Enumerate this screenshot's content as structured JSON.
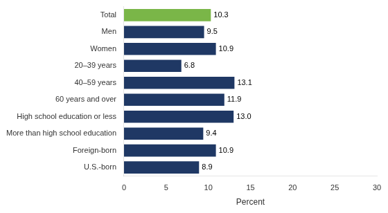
{
  "chart_data": {
    "type": "bar",
    "orientation": "horizontal",
    "categories": [
      "U.S.-born",
      "Foreign-born",
      "More than high school education",
      "High school education or less",
      "60 years and over",
      "40–59 years",
      "20–39 years",
      "Women",
      "Men",
      "Total"
    ],
    "values": [
      8.9,
      10.9,
      9.4,
      13.0,
      11.9,
      13.1,
      6.8,
      10.9,
      9.5,
      10.3
    ],
    "value_labels": [
      "8.9",
      "10.9",
      "9.4",
      "13.0",
      "11.9",
      "13.1",
      "6.8",
      "10.9",
      "9.5",
      "10.3"
    ],
    "colors": [
      "#1f3864",
      "#1f3864",
      "#1f3864",
      "#1f3864",
      "#1f3864",
      "#1f3864",
      "#1f3864",
      "#1f3864",
      "#1f3864",
      "#7ab648"
    ],
    "xlabel": "Percent",
    "xlim": [
      0,
      30
    ],
    "xticks": [
      0,
      5,
      10,
      15,
      20,
      25,
      30
    ],
    "grid": false,
    "data_labels": true
  }
}
